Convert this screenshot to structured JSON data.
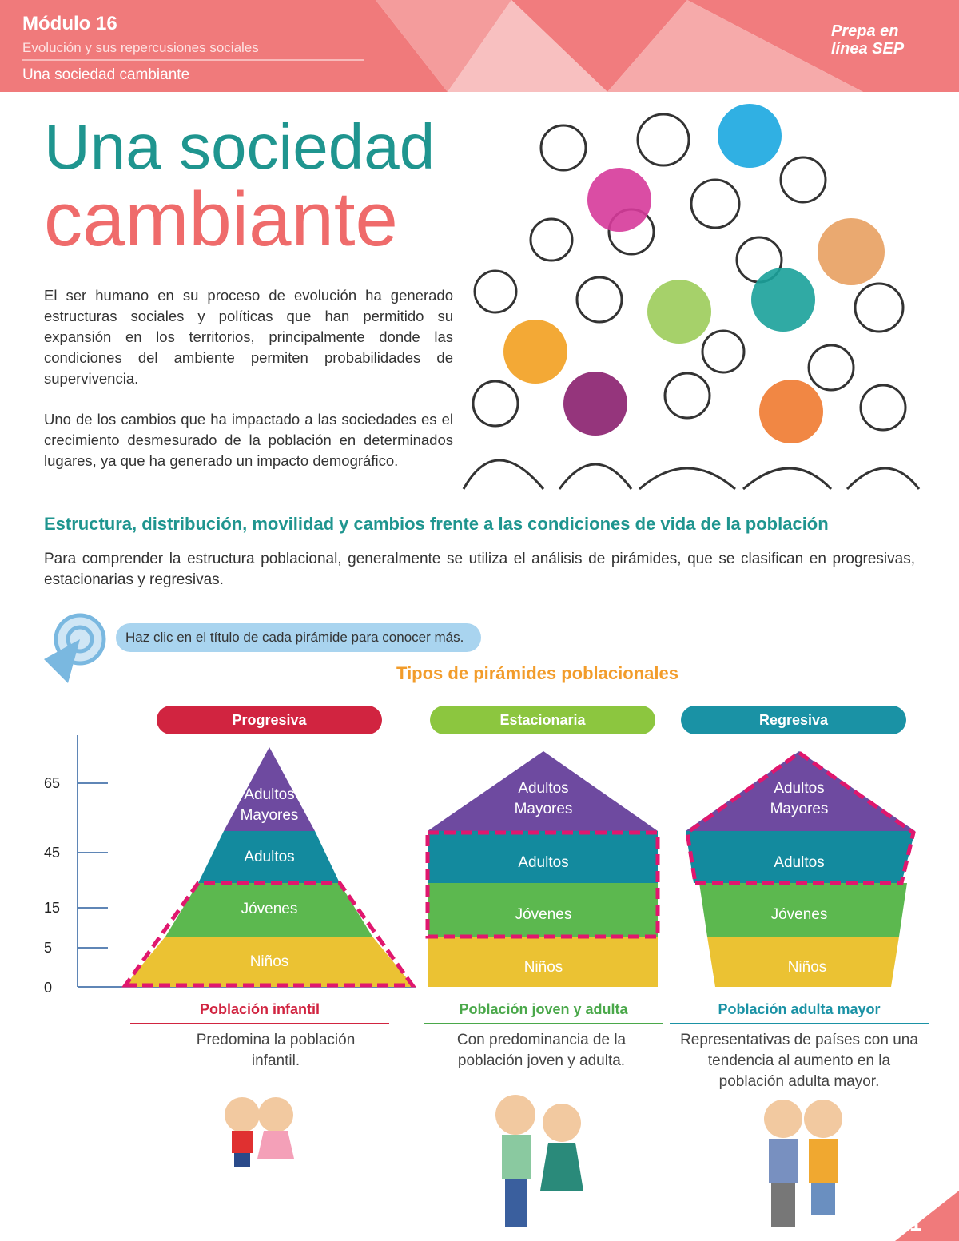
{
  "header": {
    "module": "Módulo 16",
    "subject": "Evolución y sus repercusiones sociales",
    "topic": "Una sociedad cambiante",
    "logo": "Prepa en línea SEP"
  },
  "title": {
    "line1": "Una sociedad",
    "line2": "cambiante"
  },
  "intro": [
    "El ser humano en su proceso de evolución ha generado estructuras sociales y políticas que han permitido su expansión en los territorios, principalmente donde las condiciones del ambiente permiten probabilidades de supervivencia.",
    "Uno de los cambios que ha impactado a las sociedades es el crecimiento desmesurado de la población en determinados lugares, ya que ha generado un impacto demográfico."
  ],
  "section": {
    "heading": "Estructura, distribución, movilidad y cambios frente a las condiciones de vida de la población",
    "text": "Para comprender la estructura poblacional, generalmente se utiliza el análisis de pirámides, que se clasifican en progresivas, estacionarias y regresivas."
  },
  "hint": "Haz clic en el título de cada pirámide para conocer más.",
  "diagram": {
    "title": "Tipos de pirámides poblacionales",
    "axis_ticks": [
      "0",
      "5",
      "15",
      "45",
      "65"
    ],
    "pyramids": [
      {
        "title": "Progresiva",
        "levels": [
          "Niños",
          "Jóvenes",
          "Adultos",
          "Adultos Mayores"
        ],
        "caption": "Población infantil",
        "description": "Predomina la población infantil."
      },
      {
        "title": "Estacionaria",
        "levels": [
          "Niños",
          "Jóvenes",
          "Adultos",
          "Adultos Mayores"
        ],
        "caption": "Población joven y adulta",
        "description": "Con predominancia de la población joven y adulta."
      },
      {
        "title": "Regresiva",
        "levels": [
          "Niños",
          "Jóvenes",
          "Adultos",
          "Adultos Mayores"
        ],
        "caption": "Población adulta mayor",
        "description": "Representativas de países con una tendencia al aumento en la población adulta mayor."
      }
    ]
  },
  "page_number": "1"
}
